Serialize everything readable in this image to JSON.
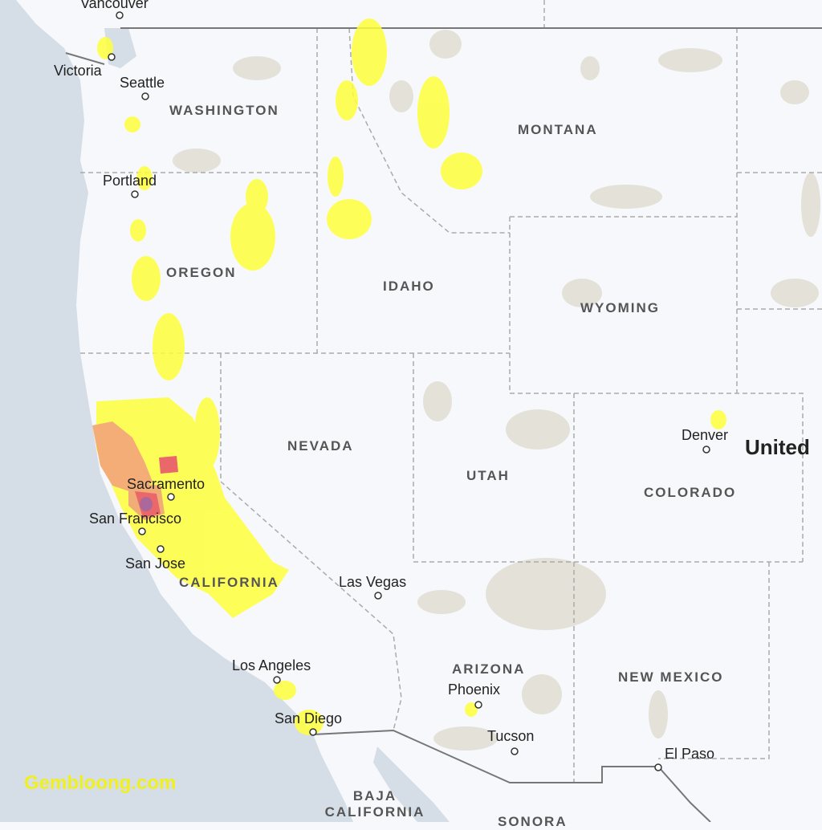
{
  "map": {
    "colors": {
      "ocean": "#d5dde6",
      "land": "#f7f8fb",
      "parks": "#e4e1d8",
      "border": "#999999",
      "good": "#ffff44",
      "moderate": "#f6f640",
      "usg": "#f4a060",
      "unhealthy": "#e85050",
      "very_unhealthy": "#a0508a"
    },
    "cities": [
      "Vancouver",
      "Victoria",
      "Seattle",
      "Portland",
      "Sacramento",
      "San Francisco",
      "San Jose",
      "Las Vegas",
      "Los Angeles",
      "San Diego",
      "Phoenix",
      "Tucson",
      "Denver",
      "El Paso"
    ],
    "states": [
      "WASHINGTON",
      "MONTANA",
      "OREGON",
      "IDAHO",
      "WYOMING",
      "NEVADA",
      "UTAH",
      "COLORADO",
      "CALIFORNIA",
      "ARIZONA",
      "NEW MEXICO",
      "BAJA CALIFORNIA",
      "SONORA"
    ],
    "country": "United",
    "watermark": "Gembloong.com"
  }
}
